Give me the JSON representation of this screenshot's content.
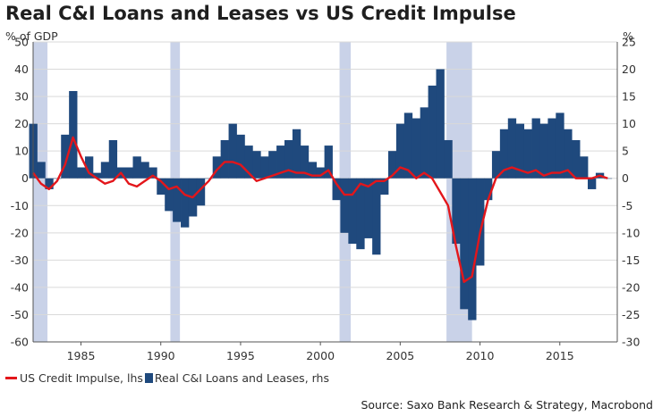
{
  "chart_data": {
    "type": "bar+line",
    "title": "Real C&I Loans and Leases vs US Credit Impulse",
    "left_axis": {
      "label": "% of GDP",
      "min": -60,
      "max": 50,
      "ticks": [
        50,
        40,
        30,
        20,
        10,
        0,
        -10,
        -20,
        -30,
        -40,
        -50,
        -60
      ]
    },
    "right_axis": {
      "label": "%",
      "min": -30,
      "max": 25,
      "ticks": [
        25,
        20,
        15,
        10,
        5,
        0,
        -5,
        -10,
        -15,
        -20,
        -25,
        -30
      ]
    },
    "x_axis": {
      "min": 1982,
      "max": 2018.6,
      "ticks": [
        1985,
        1990,
        1995,
        2000,
        2005,
        2010,
        2015
      ]
    },
    "recessions": [
      [
        1981.6,
        1982.9
      ],
      [
        1990.6,
        1991.2
      ],
      [
        2001.2,
        2001.9
      ],
      [
        2007.9,
        2009.5
      ]
    ],
    "series": [
      {
        "name": "US Credit Impulse, lhs",
        "axis": "left",
        "type": "line",
        "color": "#e3161b",
        "x": [
          1982.0,
          1982.5,
          1983.0,
          1983.5,
          1984.0,
          1984.5,
          1985.0,
          1985.5,
          1986.0,
          1986.5,
          1987.0,
          1987.5,
          1988.0,
          1988.5,
          1989.0,
          1989.5,
          1990.0,
          1990.5,
          1991.0,
          1991.5,
          1992.0,
          1992.5,
          1993.0,
          1993.5,
          1994.0,
          1994.5,
          1995.0,
          1995.5,
          1996.0,
          1996.5,
          1997.0,
          1997.5,
          1998.0,
          1998.5,
          1999.0,
          1999.5,
          2000.0,
          2000.5,
          2001.0,
          2001.5,
          2002.0,
          2002.5,
          2003.0,
          2003.5,
          2004.0,
          2004.5,
          2005.0,
          2005.5,
          2006.0,
          2006.5,
          2007.0,
          2007.5,
          2008.0,
          2008.5,
          2009.0,
          2009.5,
          2010.0,
          2010.5,
          2011.0,
          2011.5,
          2012.0,
          2012.5,
          2013.0,
          2013.5,
          2014.0,
          2014.5,
          2015.0,
          2015.5,
          2016.0,
          2016.5,
          2017.0,
          2017.5,
          2018.0
        ],
        "values": [
          2,
          -2,
          -4,
          -1,
          5,
          15,
          8,
          2,
          0,
          -2,
          -1,
          2,
          -2,
          -3,
          -1,
          1,
          -1,
          -4,
          -3,
          -6,
          -7,
          -4,
          -1,
          3,
          6,
          6,
          5,
          2,
          -1,
          0,
          1,
          2,
          3,
          2,
          2,
          1,
          1,
          3,
          -2,
          -6,
          -6,
          -2,
          -3,
          -1,
          -1,
          1,
          4,
          3,
          0,
          2,
          0,
          -5,
          -10,
          -25,
          -38,
          -36,
          -20,
          -8,
          0,
          3,
          4,
          3,
          2,
          3,
          1,
          2,
          2,
          3,
          0,
          0,
          0,
          1,
          0
        ]
      },
      {
        "name": "Real C&I Loans and Leases, rhs",
        "axis": "right",
        "type": "bar",
        "color": "#1f497d",
        "x": [
          1982.0,
          1982.5,
          1983.0,
          1983.5,
          1984.0,
          1984.5,
          1985.0,
          1985.5,
          1986.0,
          1986.5,
          1987.0,
          1987.5,
          1988.0,
          1988.5,
          1989.0,
          1989.5,
          1990.0,
          1990.5,
          1991.0,
          1991.5,
          1992.0,
          1992.5,
          1993.0,
          1993.5,
          1994.0,
          1994.5,
          1995.0,
          1995.5,
          1996.0,
          1996.5,
          1997.0,
          1997.5,
          1998.0,
          1998.5,
          1999.0,
          1999.5,
          2000.0,
          2000.5,
          2001.0,
          2001.5,
          2002.0,
          2002.5,
          2003.0,
          2003.5,
          2004.0,
          2004.5,
          2005.0,
          2005.5,
          2006.0,
          2006.5,
          2007.0,
          2007.5,
          2008.0,
          2008.5,
          2009.0,
          2009.5,
          2010.0,
          2010.5,
          2011.0,
          2011.5,
          2012.0,
          2012.5,
          2013.0,
          2013.5,
          2014.0,
          2014.5,
          2015.0,
          2015.5,
          2016.0,
          2016.5,
          2017.0,
          2017.5,
          2018.0
        ],
        "values": [
          10,
          3,
          -2,
          0,
          8,
          16,
          2,
          4,
          1,
          3,
          7,
          2,
          2,
          4,
          3,
          2,
          -3,
          -6,
          -8,
          -9,
          -7,
          -5,
          0,
          4,
          7,
          10,
          8,
          6,
          5,
          4,
          5,
          6,
          7,
          9,
          6,
          3,
          2,
          6,
          -4,
          -10,
          -12,
          -13,
          -11,
          -14,
          -3,
          5,
          10,
          12,
          11,
          13,
          17,
          20,
          7,
          -12,
          -24,
          -26,
          -16,
          -4,
          5,
          9,
          11,
          10,
          9,
          11,
          10,
          11,
          12,
          9,
          7,
          4,
          -2,
          1,
          0
        ]
      }
    ]
  },
  "legend": {
    "line_label": "US Credit Impulse, lhs",
    "bar_label": "Real C&I Loans and Leases, rhs"
  },
  "source": "Source: Saxo Bank Research & Strategy, Macrobond",
  "colors": {
    "line": "#e3161b",
    "bar": "#1f497d",
    "recession": "#c9d2e8",
    "grid": "#d9d9d9",
    "axis": "#555555"
  }
}
